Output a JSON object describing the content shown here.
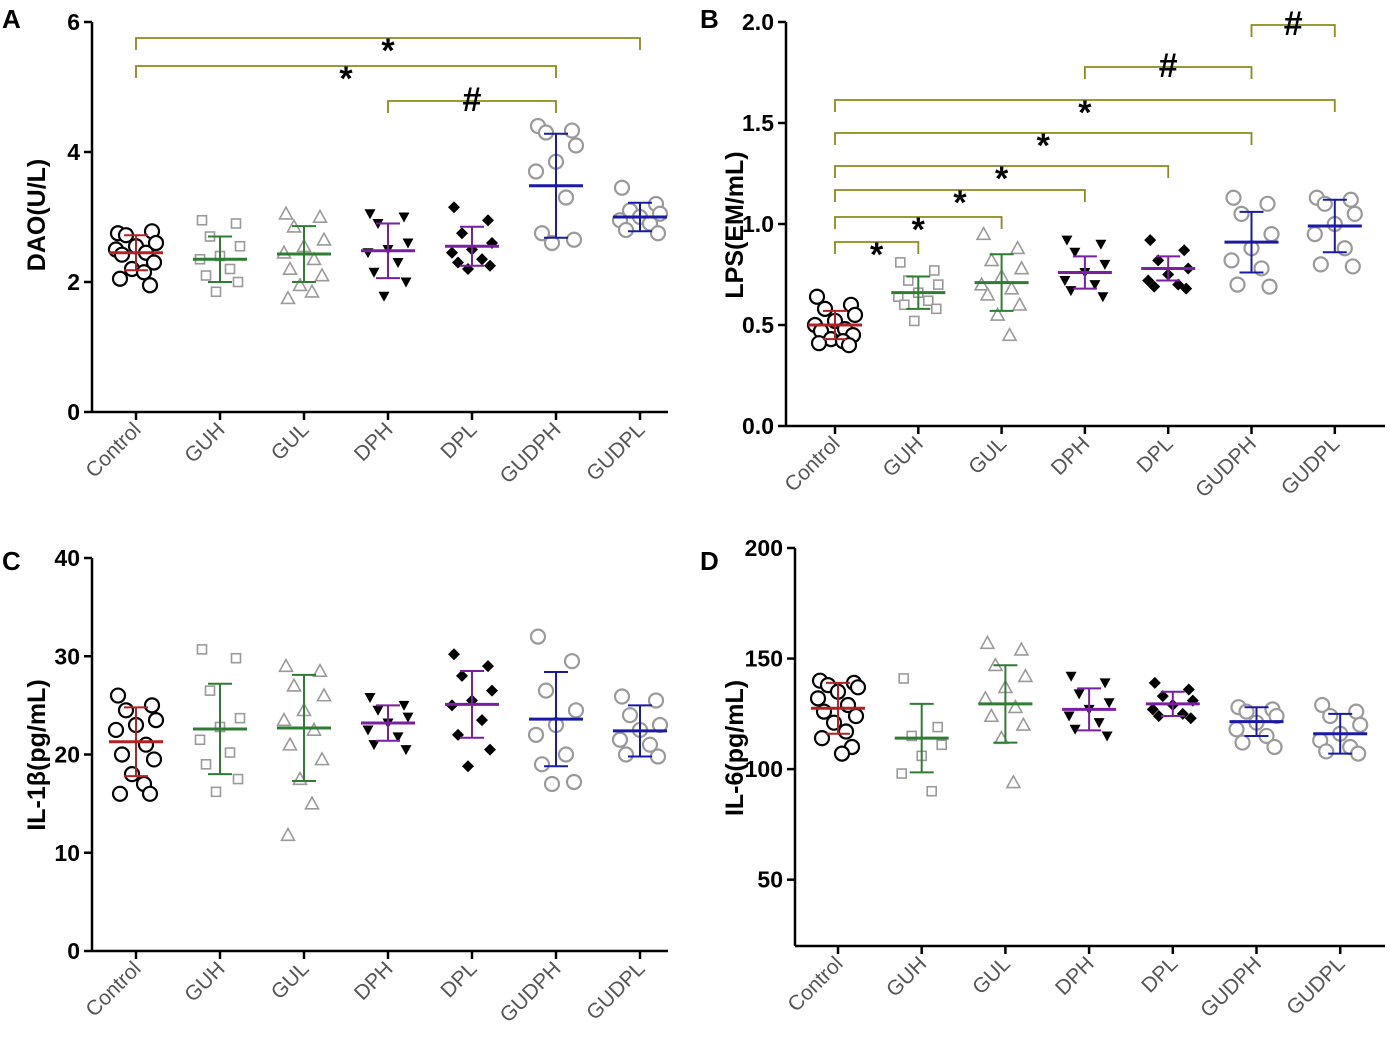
{
  "colors": {
    "bracket": "#8b8b1a",
    "control": "#b22222",
    "guh": "#2e7d32",
    "gul": "#2e7d32",
    "dph": "#7b1fa2",
    "dpl": "#7b1fa2",
    "gudph": "#1a1aa6",
    "gudpl": "#1a1aa6",
    "marker_black": "#000000",
    "marker_gray": "#9a9a9a"
  },
  "chart_data": [
    {
      "panel": "A",
      "type": "scatter",
      "ylabel": "DAO(U/L)",
      "ylim": [
        0,
        6
      ],
      "yticks": [
        "0",
        "2",
        "4",
        "6"
      ],
      "categories": [
        "Control",
        "GUH",
        "GUL",
        "DPH",
        "DPL",
        "GUDPH",
        "GUDPL"
      ],
      "groups": [
        {
          "name": "Control",
          "marker": "circle-open",
          "marker_color": "black",
          "mean_color": "control",
          "mean": 2.45,
          "sd": 0.27,
          "points": [
            2.75,
            2.78,
            2.72,
            2.6,
            2.55,
            2.5,
            2.45,
            2.42,
            2.3,
            2.2,
            2.15,
            2.05,
            1.95
          ]
        },
        {
          "name": "GUH",
          "marker": "square-open",
          "marker_color": "gray",
          "mean_color": "guh",
          "mean": 2.35,
          "sd": 0.35,
          "points": [
            2.95,
            2.9,
            2.7,
            2.55,
            2.4,
            2.35,
            2.2,
            2.1,
            2.0,
            1.85
          ]
        },
        {
          "name": "GUL",
          "marker": "triangle-up-open",
          "marker_color": "gray",
          "mean_color": "gul",
          "mean": 2.43,
          "sd": 0.43,
          "points": [
            3.05,
            3.0,
            2.85,
            2.65,
            2.55,
            2.45,
            2.35,
            2.2,
            2.1,
            1.95,
            1.85,
            1.75
          ]
        },
        {
          "name": "DPH",
          "marker": "triangle-down-filled",
          "marker_color": "black",
          "mean_color": "dph",
          "mean": 2.48,
          "sd": 0.42,
          "points": [
            3.05,
            3.0,
            2.9,
            2.6,
            2.5,
            2.45,
            2.3,
            2.15,
            2.0,
            1.78
          ]
        },
        {
          "name": "DPL",
          "marker": "diamond-filled",
          "marker_color": "black",
          "mean_color": "dpl",
          "mean": 2.55,
          "sd": 0.3,
          "points": [
            3.15,
            2.95,
            2.75,
            2.6,
            2.5,
            2.45,
            2.35,
            2.3,
            2.25,
            2.2
          ]
        },
        {
          "name": "GUDPH",
          "marker": "circle-open",
          "marker_color": "gray",
          "mean_color": "gudph",
          "mean": 3.48,
          "sd": 0.8,
          "points": [
            4.4,
            4.33,
            4.3,
            4.1,
            3.85,
            3.7,
            3.3,
            2.75,
            2.65,
            2.6
          ]
        },
        {
          "name": "GUDPL",
          "marker": "circle-open",
          "marker_color": "gray",
          "mean_color": "gudpl",
          "mean": 3.0,
          "sd": 0.22,
          "points": [
            3.45,
            3.2,
            3.1,
            3.05,
            3.0,
            2.95,
            2.9,
            2.8,
            2.75
          ]
        }
      ],
      "annotations": [
        {
          "from": 0,
          "to": 6,
          "label": "*"
        },
        {
          "from": 0,
          "to": 5,
          "label": "*"
        },
        {
          "from": 3,
          "to": 5,
          "label": "#"
        }
      ]
    },
    {
      "panel": "B",
      "type": "scatter",
      "ylabel": "LPS(EM/mL)",
      "ylim": [
        0,
        2.0
      ],
      "yticks": [
        "0.0",
        "0.5",
        "1.0",
        "1.5",
        "2.0"
      ],
      "categories": [
        "Control",
        "GUH",
        "GUL",
        "DPH",
        "DPL",
        "GUDPH",
        "GUDPL"
      ],
      "groups": [
        {
          "name": "Control",
          "marker": "circle-open",
          "marker_color": "black",
          "mean_color": "control",
          "mean": 0.5,
          "sd": 0.07,
          "points": [
            0.64,
            0.6,
            0.58,
            0.55,
            0.52,
            0.5,
            0.48,
            0.47,
            0.45,
            0.43,
            0.42,
            0.41,
            0.4
          ]
        },
        {
          "name": "GUH",
          "marker": "square-open",
          "marker_color": "gray",
          "mean_color": "guh",
          "mean": 0.66,
          "sd": 0.08,
          "points": [
            0.81,
            0.77,
            0.72,
            0.7,
            0.66,
            0.64,
            0.62,
            0.6,
            0.58,
            0.52
          ]
        },
        {
          "name": "GUL",
          "marker": "triangle-up-open",
          "marker_color": "gray",
          "mean_color": "gul",
          "mean": 0.71,
          "sd": 0.14,
          "points": [
            0.95,
            0.88,
            0.82,
            0.78,
            0.74,
            0.7,
            0.68,
            0.65,
            0.6,
            0.55,
            0.45
          ]
        },
        {
          "name": "DPH",
          "marker": "triangle-down-filled",
          "marker_color": "black",
          "mean_color": "dph",
          "mean": 0.76,
          "sd": 0.08,
          "points": [
            0.92,
            0.9,
            0.86,
            0.8,
            0.76,
            0.72,
            0.7,
            0.67,
            0.64
          ]
        },
        {
          "name": "DPL",
          "marker": "diamond-filled",
          "marker_color": "black",
          "mean_color": "dpl",
          "mean": 0.78,
          "sd": 0.06,
          "points": [
            0.92,
            0.87,
            0.82,
            0.78,
            0.75,
            0.72,
            0.7,
            0.69,
            0.68
          ]
        },
        {
          "name": "GUDPH",
          "marker": "circle-open",
          "marker_color": "gray",
          "mean_color": "gudph",
          "mean": 0.91,
          "sd": 0.15,
          "points": [
            1.13,
            1.1,
            1.05,
            0.95,
            0.88,
            0.82,
            0.78,
            0.7,
            0.69
          ]
        },
        {
          "name": "GUDPL",
          "marker": "circle-open",
          "marker_color": "gray",
          "mean_color": "gudpl",
          "mean": 0.99,
          "sd": 0.13,
          "points": [
            1.13,
            1.12,
            1.1,
            1.05,
            1.0,
            0.95,
            0.88,
            0.8,
            0.79
          ]
        }
      ],
      "annotations": [
        {
          "from": 5,
          "to": 6,
          "label": "#"
        },
        {
          "from": 3,
          "to": 5,
          "label": "#"
        },
        {
          "from": 0,
          "to": 6,
          "label": "*"
        },
        {
          "from": 0,
          "to": 5,
          "label": "*"
        },
        {
          "from": 0,
          "to": 4,
          "label": "*"
        },
        {
          "from": 0,
          "to": 3,
          "label": "*"
        },
        {
          "from": 0,
          "to": 2,
          "label": "*"
        },
        {
          "from": 0,
          "to": 1,
          "label": "*"
        }
      ]
    },
    {
      "panel": "C",
      "type": "scatter",
      "ylabel": "IL-1β(pg/mL)",
      "ylim": [
        0,
        40
      ],
      "yticks": [
        "0",
        "10",
        "20",
        "30",
        "40"
      ],
      "categories": [
        "Control",
        "GUH",
        "GUL",
        "DPH",
        "DPL",
        "GUDPH",
        "GUDPL"
      ],
      "groups": [
        {
          "name": "Control",
          "marker": "circle-open",
          "marker_color": "black",
          "mean_color": "control",
          "mean": 21.3,
          "sd": 3.5,
          "points": [
            26.0,
            25.0,
            24.5,
            23.5,
            23.0,
            22.5,
            21.0,
            20.0,
            19.5,
            18.0,
            17.0,
            16.0,
            16.0
          ]
        },
        {
          "name": "GUH",
          "marker": "square-open",
          "marker_color": "gray",
          "mean_color": "guh",
          "mean": 22.6,
          "sd": 4.6,
          "points": [
            30.7,
            29.8,
            26.5,
            23.7,
            22.8,
            21.5,
            20.2,
            19.0,
            17.5,
            16.2
          ]
        },
        {
          "name": "GUL",
          "marker": "triangle-up-open",
          "marker_color": "gray",
          "mean_color": "gul",
          "mean": 22.7,
          "sd": 5.4,
          "points": [
            29.0,
            28.5,
            27.0,
            26.0,
            24.5,
            23.5,
            22.5,
            21.0,
            19.5,
            17.5,
            15.0,
            11.8
          ]
        },
        {
          "name": "DPH",
          "marker": "triangle-down-filled",
          "marker_color": "black",
          "mean_color": "dph",
          "mean": 23.2,
          "sd": 1.8,
          "points": [
            25.8,
            25.0,
            24.5,
            23.8,
            23.2,
            22.5,
            21.8,
            21.0,
            20.5
          ]
        },
        {
          "name": "DPL",
          "marker": "diamond-filled",
          "marker_color": "black",
          "mean_color": "dpl",
          "mean": 25.1,
          "sd": 3.4,
          "points": [
            30.2,
            29.0,
            28.0,
            26.5,
            25.5,
            25.0,
            23.5,
            22.0,
            20.5,
            18.8
          ]
        },
        {
          "name": "GUDPH",
          "marker": "circle-open",
          "marker_color": "gray",
          "mean_color": "gudph",
          "mean": 23.6,
          "sd": 4.8,
          "points": [
            32.0,
            29.5,
            26.5,
            24.5,
            23.0,
            22.0,
            20.0,
            19.0,
            17.2,
            17.0
          ]
        },
        {
          "name": "GUDPL",
          "marker": "circle-open",
          "marker_color": "gray",
          "mean_color": "gudpl",
          "mean": 22.4,
          "sd": 2.6,
          "points": [
            25.9,
            25.5,
            24.0,
            23.0,
            22.5,
            21.5,
            21.0,
            20.0,
            19.8
          ]
        }
      ],
      "annotations": []
    },
    {
      "panel": "D",
      "type": "scatter",
      "ylabel": "IL-6(pg/mL)",
      "ylim": [
        20,
        200
      ],
      "yticks": [
        "50",
        "100",
        "150",
        "200"
      ],
      "categories": [
        "Control",
        "GUH",
        "GUL",
        "DPH",
        "DPL",
        "GUDPH",
        "GUDPL"
      ],
      "groups": [
        {
          "name": "Control",
          "marker": "circle-open",
          "marker_color": "black",
          "mean_color": "control",
          "mean": 127.5,
          "sd": 11.5,
          "points": [
            140.0,
            139.0,
            138.0,
            137.0,
            135.0,
            132.0,
            129.0,
            126.0,
            124.0,
            121.0,
            117.0,
            114.0,
            110.0,
            107.0
          ]
        },
        {
          "name": "GUH",
          "marker": "square-open",
          "marker_color": "gray",
          "mean_color": "guh",
          "mean": 114.0,
          "sd": 15.5,
          "points": [
            141.0,
            119.0,
            115.0,
            111.0,
            106.0,
            98.0,
            90.0
          ]
        },
        {
          "name": "GUL",
          "marker": "triangle-up-open",
          "marker_color": "gray",
          "mean_color": "gul",
          "mean": 129.5,
          "sd": 17.5,
          "points": [
            157.0,
            154.0,
            147.0,
            142.0,
            137.0,
            132.0,
            128.0,
            124.0,
            120.0,
            114.0,
            94.0
          ]
        },
        {
          "name": "DPH",
          "marker": "triangle-down-filled",
          "marker_color": "black",
          "mean_color": "dph",
          "mean": 127.0,
          "sd": 9.5,
          "points": [
            142.0,
            139.0,
            134.0,
            130.0,
            127.0,
            124.0,
            121.0,
            118.0,
            115.0
          ]
        },
        {
          "name": "DPL",
          "marker": "diamond-filled",
          "marker_color": "black",
          "mean_color": "dpl",
          "mean": 129.5,
          "sd": 5.5,
          "points": [
            139.0,
            136.0,
            133.0,
            131.0,
            129.0,
            127.0,
            125.0,
            124.0,
            123.0
          ]
        },
        {
          "name": "GUDPH",
          "marker": "circle-open",
          "marker_color": "gray",
          "mean_color": "gudph",
          "mean": 121.5,
          "sd": 6.5,
          "points": [
            128.0,
            127.0,
            126.0,
            124.0,
            121.0,
            118.0,
            115.0,
            112.0,
            110.0
          ]
        },
        {
          "name": "GUDPL",
          "marker": "circle-open",
          "marker_color": "gray",
          "mean_color": "gudpl",
          "mean": 116.0,
          "sd": 9.0,
          "points": [
            129.0,
            126.0,
            124.0,
            120.0,
            116.0,
            113.0,
            110.0,
            108.0,
            107.0
          ]
        }
      ],
      "annotations": []
    }
  ]
}
